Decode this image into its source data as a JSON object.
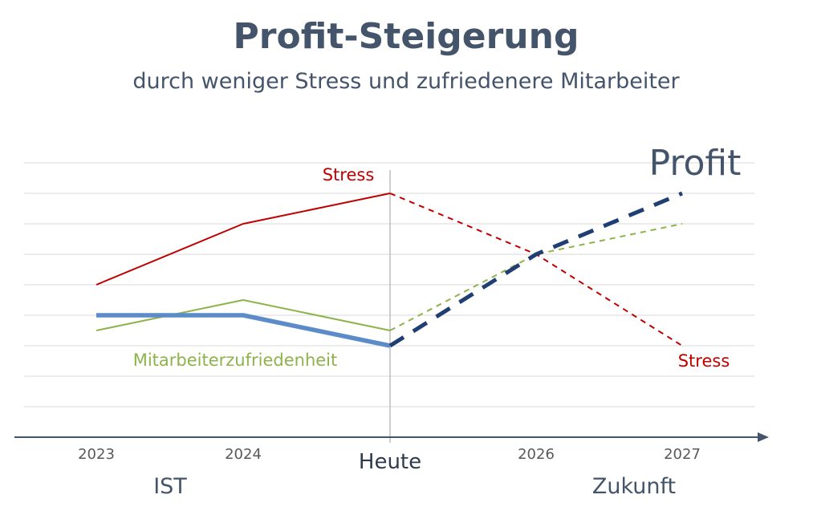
{
  "title": "Profit-Steigerung",
  "subtitle": "durch weniger Stress und zufriedenere Mitarbeiter",
  "colors": {
    "stress": "#C00000",
    "mitarbeiter": "#8DB34B",
    "profit_ist": "#5B8BC9",
    "profit_zukunft": "#1F3F73",
    "grid": "#D9D9D9",
    "axis": "#44546A"
  },
  "chart_data": {
    "type": "line",
    "categories": [
      "2023",
      "2024",
      "Heute",
      "2026",
      "2027"
    ],
    "xlabel": "",
    "ylabel": "",
    "ylim": [
      0,
      9
    ],
    "grid": true,
    "series": [
      {
        "name": "Stress",
        "values": [
          5,
          7,
          8,
          6,
          3
        ],
        "solid_until_index": 2
      },
      {
        "name": "Mitarbeiterzufriedenheit",
        "values": [
          3.5,
          4.5,
          3.5,
          6,
          7
        ],
        "solid_until_index": 2
      },
      {
        "name": "Profit",
        "values": [
          4,
          4,
          3,
          6,
          8
        ],
        "solid_until_index": 2
      }
    ],
    "annotations": {
      "stress_top": "Stress",
      "stress_bottom": "Stress",
      "mitarbeiter": "Mitarbeiterzufriedenheit",
      "profit": "Profit",
      "ist": "IST",
      "zukunft": "Zukunft"
    }
  }
}
